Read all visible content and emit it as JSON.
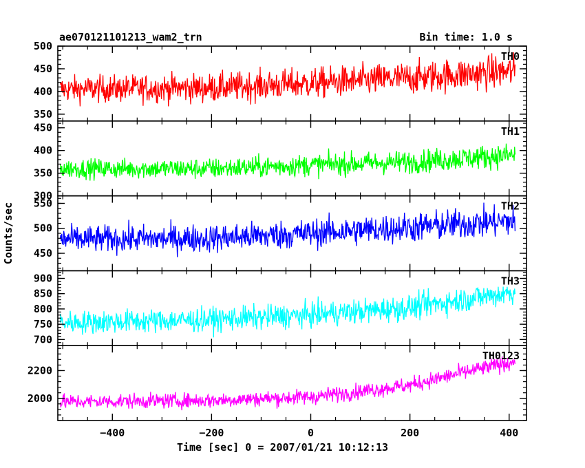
{
  "header": {
    "left_title": "ae070121101213_wam2_trn",
    "right_title": "Bin time: 1.0 s"
  },
  "chart_data": {
    "type": "line",
    "xlabel": "Time [sec] 0 = 2007/01/21 10:12:13",
    "ylabel": "Counts/sec",
    "xlim": [
      -510,
      435
    ],
    "x_ticks": [
      -400,
      -200,
      0,
      200,
      400
    ],
    "x_tick_labels": [
      "−400",
      "−200",
      "0",
      "200",
      "400"
    ],
    "x_range": [
      -505,
      412
    ],
    "bin_time_s": 1.0,
    "panels": [
      {
        "name": "TH0",
        "color": "#ff0000",
        "ylim": [
          335,
          500
        ],
        "y_ticks": [
          350,
          400,
          450,
          500
        ],
        "trend": [
          [
            -505,
            405
          ],
          [
            -200,
            408
          ],
          [
            0,
            418
          ],
          [
            200,
            430
          ],
          [
            410,
            445
          ]
        ],
        "noise": 26,
        "noise_end": 34
      },
      {
        "name": "TH1",
        "color": "#00ff00",
        "ylim": [
          300,
          465
        ],
        "y_ticks": [
          300,
          350,
          400,
          450
        ],
        "trend": [
          [
            -505,
            360
          ],
          [
            -200,
            360
          ],
          [
            0,
            368
          ],
          [
            200,
            375
          ],
          [
            410,
            390
          ]
        ],
        "noise": 19,
        "noise_end": 24
      },
      {
        "name": "TH2",
        "color": "#0000ff",
        "ylim": [
          415,
          565
        ],
        "y_ticks": [
          450,
          500,
          550
        ],
        "trend": [
          [
            -505,
            478
          ],
          [
            -200,
            480
          ],
          [
            0,
            490
          ],
          [
            200,
            502
          ],
          [
            410,
            515
          ]
        ],
        "noise": 24,
        "noise_end": 28
      },
      {
        "name": "TH3",
        "color": "#00ffff",
        "ylim": [
          680,
          925
        ],
        "y_ticks": [
          700,
          750,
          800,
          850,
          900
        ],
        "trend": [
          [
            -505,
            755
          ],
          [
            -200,
            765
          ],
          [
            0,
            780
          ],
          [
            200,
            805
          ],
          [
            410,
            855
          ]
        ],
        "noise": 34,
        "noise_end": 38
      },
      {
        "name": "TH0123",
        "color": "#ff00ff",
        "ylim": [
          1840,
          2380
        ],
        "y_ticks": [
          2000,
          2200
        ],
        "trend": [
          [
            -505,
            1975
          ],
          [
            -200,
            1985
          ],
          [
            0,
            2010
          ],
          [
            100,
            2050
          ],
          [
            200,
            2095
          ],
          [
            300,
            2180
          ],
          [
            410,
            2265
          ]
        ],
        "noise": 48,
        "noise_end": 52
      }
    ]
  }
}
